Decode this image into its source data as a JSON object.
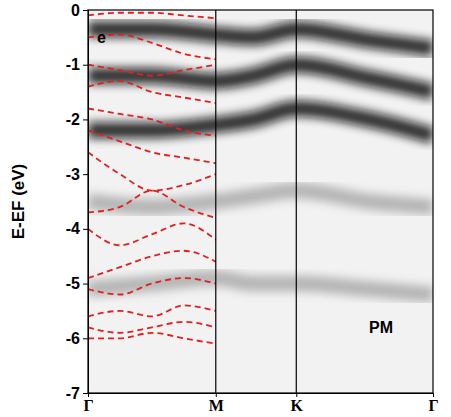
{
  "chart_data": {
    "type": "line",
    "y_label": "E-EF (eV)",
    "ylim": [
      -7,
      0
    ],
    "yticks": [
      0,
      -1,
      -2,
      -3,
      -4,
      -5,
      -6,
      -7
    ],
    "xlim": [
      0,
      2.7
    ],
    "xticks": [
      {
        "value": 0,
        "label": "Γ"
      },
      {
        "value": 1,
        "label": "M"
      },
      {
        "value": 1.63,
        "label": "K"
      },
      {
        "value": 2.7,
        "label": "Γ"
      }
    ],
    "annotations": [
      {
        "text": "e",
        "x": 0.07,
        "y": -0.6
      },
      {
        "text": "PM",
        "x": 2.2,
        "y": -5.9
      }
    ],
    "series": [
      {
        "type": "band",
        "color": "#111111",
        "x": [
          0,
          0.5,
          1,
          1.3,
          1.63,
          2.2,
          2.7
        ],
        "values": [
          -0.35,
          -0.35,
          -0.45,
          -0.5,
          -0.35,
          -0.55,
          -0.7
        ]
      },
      {
        "type": "band",
        "color": "#111111",
        "x": [
          0,
          0.5,
          1,
          1.3,
          1.63,
          2.2,
          2.7
        ],
        "values": [
          -1.2,
          -1.2,
          -1.3,
          -1.2,
          -1.0,
          -1.25,
          -1.5
        ]
      },
      {
        "type": "band",
        "color": "#111111",
        "x": [
          0,
          0.5,
          1,
          1.3,
          1.63,
          2.2,
          2.7
        ],
        "values": [
          -2.2,
          -2.2,
          -2.1,
          -2.0,
          -1.8,
          -2.0,
          -2.3
        ]
      },
      {
        "type": "band",
        "color": "#aaaaaa",
        "x": [
          0,
          0.5,
          1,
          1.3,
          1.63,
          2.2,
          2.7
        ],
        "values": [
          -3.5,
          -3.6,
          -3.5,
          -3.4,
          -3.3,
          -3.5,
          -3.6
        ]
      },
      {
        "type": "band",
        "color": "#aaaaaa",
        "x": [
          0,
          0.5,
          1,
          1.3,
          1.63,
          2.2,
          2.7
        ],
        "values": [
          -5.1,
          -5.0,
          -4.9,
          -5.0,
          -5.0,
          -5.1,
          -5.2
        ]
      },
      {
        "type": "line",
        "color": "#e02020",
        "line_style": "dashed",
        "x": [
          0,
          0.25,
          0.5,
          0.75,
          1
        ],
        "values": [
          -0.1,
          -0.05,
          -0.05,
          -0.1,
          -0.15
        ]
      },
      {
        "type": "line",
        "color": "#e02020",
        "line_style": "dashed",
        "x": [
          0,
          0.25,
          0.5,
          0.75,
          1
        ],
        "values": [
          -0.5,
          -0.45,
          -0.6,
          -0.8,
          -0.9
        ]
      },
      {
        "type": "line",
        "color": "#e02020",
        "line_style": "dashed",
        "x": [
          0,
          0.25,
          0.5,
          0.75,
          1
        ],
        "values": [
          -1.0,
          -1.1,
          -1.2,
          -1.1,
          -1.0
        ]
      },
      {
        "type": "line",
        "color": "#e02020",
        "line_style": "dashed",
        "x": [
          0,
          0.25,
          0.5,
          0.75,
          1
        ],
        "values": [
          -1.4,
          -1.3,
          -1.5,
          -1.6,
          -1.7
        ]
      },
      {
        "type": "line",
        "color": "#e02020",
        "line_style": "dashed",
        "x": [
          0,
          0.25,
          0.5,
          0.75,
          1
        ],
        "values": [
          -1.8,
          -1.9,
          -2.0,
          -2.2,
          -2.3
        ]
      },
      {
        "type": "line",
        "color": "#e02020",
        "line_style": "dashed",
        "x": [
          0,
          0.25,
          0.5,
          0.75,
          1
        ],
        "values": [
          -2.2,
          -2.4,
          -2.6,
          -2.7,
          -2.8
        ]
      },
      {
        "type": "line",
        "color": "#e02020",
        "line_style": "dashed",
        "x": [
          0,
          0.25,
          0.5,
          0.75,
          1
        ],
        "values": [
          -2.6,
          -3.0,
          -3.3,
          -3.2,
          -3.0
        ]
      },
      {
        "type": "line",
        "color": "#e02020",
        "line_style": "dashed",
        "x": [
          0,
          0.25,
          0.5,
          0.75,
          1
        ],
        "values": [
          -3.7,
          -3.6,
          -3.3,
          -3.6,
          -3.8
        ]
      },
      {
        "type": "line",
        "color": "#e02020",
        "line_style": "dashed",
        "x": [
          0,
          0.25,
          0.5,
          0.75,
          1
        ],
        "values": [
          -4.0,
          -4.3,
          -4.1,
          -3.9,
          -4.2
        ]
      },
      {
        "type": "line",
        "color": "#e02020",
        "line_style": "dashed",
        "x": [
          0,
          0.25,
          0.5,
          0.75,
          1
        ],
        "values": [
          -4.9,
          -4.7,
          -4.5,
          -4.4,
          -4.6
        ]
      },
      {
        "type": "line",
        "color": "#e02020",
        "line_style": "dashed",
        "x": [
          0,
          0.25,
          0.5,
          0.75,
          1
        ],
        "values": [
          -5.1,
          -5.2,
          -5.0,
          -4.9,
          -5.0
        ]
      },
      {
        "type": "line",
        "color": "#e02020",
        "line_style": "dashed",
        "x": [
          0,
          0.25,
          0.5,
          0.75,
          1
        ],
        "values": [
          -5.6,
          -5.5,
          -5.6,
          -5.4,
          -5.5
        ]
      },
      {
        "type": "line",
        "color": "#e02020",
        "line_style": "dashed",
        "x": [
          0,
          0.25,
          0.5,
          0.75,
          1
        ],
        "values": [
          -5.8,
          -5.9,
          -5.8,
          -5.7,
          -5.8
        ]
      },
      {
        "type": "line",
        "color": "#e02020",
        "line_style": "dashed",
        "x": [
          0,
          0.25,
          0.5,
          0.75,
          1
        ],
        "values": [
          -6.0,
          -6.0,
          -5.9,
          -6.0,
          -6.1
        ]
      }
    ]
  }
}
